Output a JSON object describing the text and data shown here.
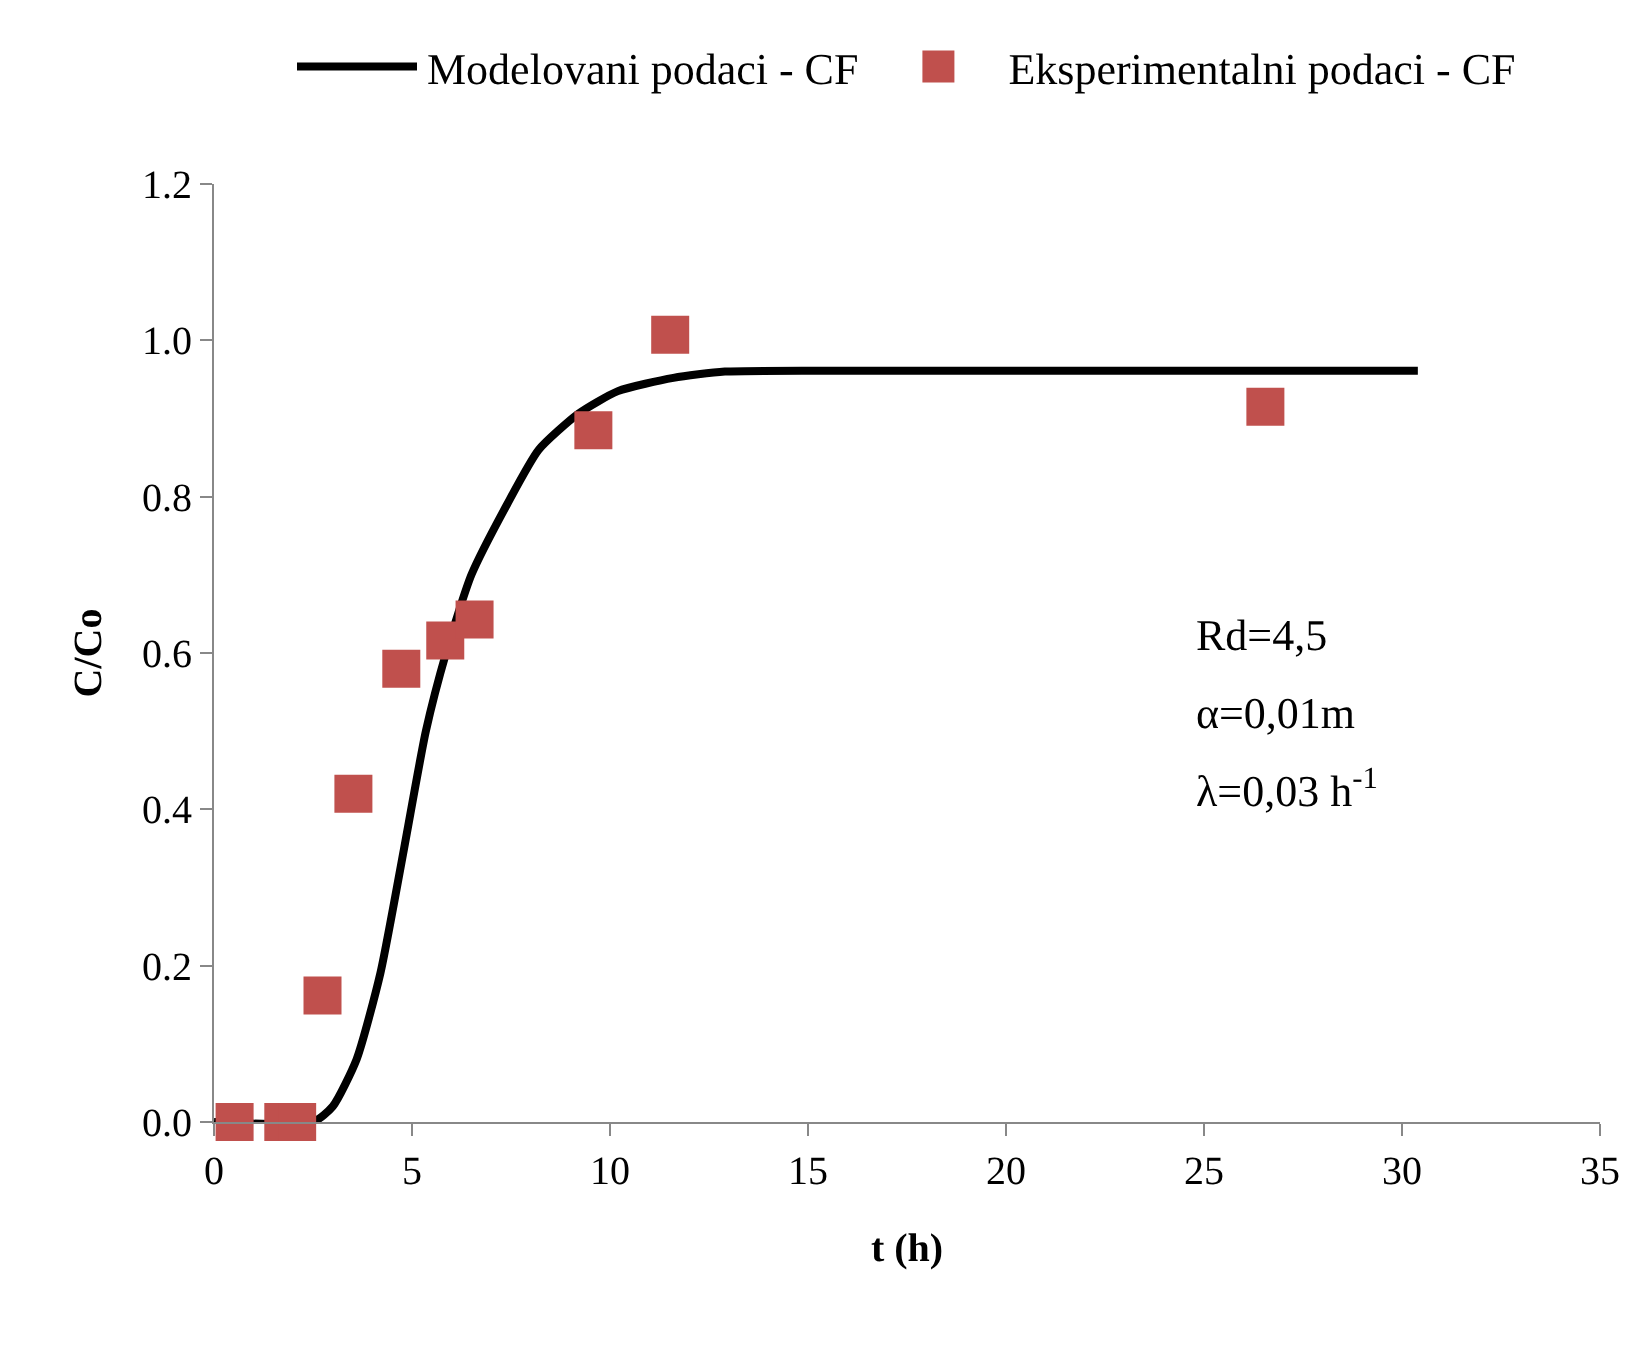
{
  "chart_data": {
    "type": "scatter",
    "xlabel": "t (h)",
    "ylabel": "C/Co",
    "xlim": [
      0,
      35
    ],
    "xticks": [
      0,
      5,
      10,
      15,
      20,
      25,
      30,
      35
    ],
    "ylim": [
      0,
      1.2
    ],
    "yticks": [
      {
        "value": 0,
        "label": "0.0"
      },
      {
        "value": 0.2,
        "label": "0.2"
      },
      {
        "value": 0.4,
        "label": "0.4"
      },
      {
        "value": 0.6,
        "label": "0.6"
      },
      {
        "value": 0.8,
        "label": "0.8"
      },
      {
        "value": 1.0,
        "label": "1.0"
      },
      {
        "value": 1.2,
        "label": "1.2"
      }
    ],
    "grid": false,
    "legend": "top",
    "marker": "square",
    "series": [
      {
        "name": "Modelovani podaci - CF",
        "type": "line",
        "color": "#000000",
        "line_style": "solid",
        "marker": "none",
        "x": [
          0,
          2.5,
          3.0,
          3.6,
          4.2,
          4.8,
          5.35,
          5.86,
          6.5,
          7.4,
          8.2,
          9.2,
          10.2,
          11.6,
          12.9,
          16,
          20,
          25,
          30.4
        ],
        "values": [
          0,
          0,
          0.02,
          0.08,
          0.19,
          0.35,
          0.5,
          0.6,
          0.7,
          0.79,
          0.86,
          0.906,
          0.935,
          0.952,
          0.96,
          0.961,
          0.961,
          0.961,
          0.961
        ]
      },
      {
        "name": "Eksperimentalni podaci - CF",
        "color": "#c0504d",
        "x": [
          0.52,
          1.75,
          2.1,
          2.74,
          3.52,
          4.73,
          5.84,
          6.58,
          9.58,
          11.52,
          26.55
        ],
        "values": [
          0,
          0,
          0,
          0.162,
          0.42,
          0.58,
          0.616,
          0.643,
          0.885,
          1.007,
          0.915
        ]
      }
    ],
    "annotations": [
      "Rd=4,5",
      "α=0,01m",
      "λ=0,03 h$^{-1}$"
    ]
  }
}
